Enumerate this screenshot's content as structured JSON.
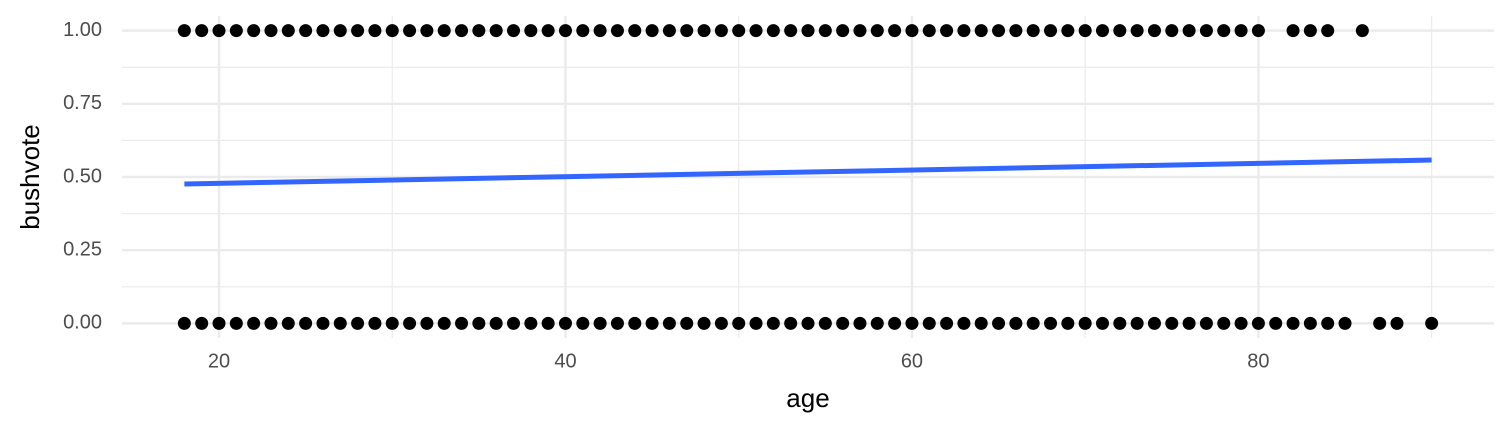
{
  "chart_data": {
    "type": "scatter",
    "x_label": "age",
    "y_label": "bushvote",
    "xlim": [
      14.4,
      93.6
    ],
    "ylim": [
      -0.05,
      1.05
    ],
    "xticks": [
      20,
      40,
      60,
      80
    ],
    "yticks": [
      {
        "value": 0,
        "label": "0.00"
      },
      0.25,
      {
        "value": 0.5,
        "label": "0.50"
      },
      0.75,
      {
        "value": 1,
        "label": "1.00"
      }
    ],
    "xminor_ticks": [
      30,
      50,
      70,
      90
    ],
    "yminor_ticks": [
      0.125,
      0.375,
      0.625,
      0.875
    ],
    "grid": true,
    "series": [
      {
        "type": "scatter",
        "color": "#000000",
        "x": [
          18,
          19,
          20,
          21,
          22,
          23,
          24,
          25,
          26,
          27,
          28,
          29,
          30,
          31,
          32,
          33,
          34,
          35,
          36,
          37,
          38,
          39,
          40,
          41,
          42,
          43,
          44,
          45,
          46,
          47,
          48,
          49,
          50,
          51,
          52,
          53,
          54,
          55,
          56,
          57,
          58,
          59,
          60,
          61,
          62,
          63,
          64,
          65,
          66,
          67,
          68,
          69,
          70,
          71,
          72,
          73,
          74,
          75,
          76,
          77,
          78,
          79,
          80,
          82,
          83,
          84,
          86
        ],
        "values": [
          1,
          1,
          1,
          1,
          1,
          1,
          1,
          1,
          1,
          1,
          1,
          1,
          1,
          1,
          1,
          1,
          1,
          1,
          1,
          1,
          1,
          1,
          1,
          1,
          1,
          1,
          1,
          1,
          1,
          1,
          1,
          1,
          1,
          1,
          1,
          1,
          1,
          1,
          1,
          1,
          1,
          1,
          1,
          1,
          1,
          1,
          1,
          1,
          1,
          1,
          1,
          1,
          1,
          1,
          1,
          1,
          1,
          1,
          1,
          1,
          1,
          1,
          1,
          1,
          1,
          1,
          1
        ]
      },
      {
        "type": "scatter",
        "color": "#000000",
        "x": [
          18,
          19,
          20,
          21,
          22,
          23,
          24,
          25,
          26,
          27,
          28,
          29,
          30,
          31,
          32,
          33,
          34,
          35,
          36,
          37,
          38,
          39,
          40,
          41,
          42,
          43,
          44,
          45,
          46,
          47,
          48,
          49,
          50,
          51,
          52,
          53,
          54,
          55,
          56,
          57,
          58,
          59,
          60,
          61,
          62,
          63,
          64,
          65,
          66,
          67,
          68,
          69,
          70,
          71,
          72,
          73,
          74,
          75,
          76,
          77,
          78,
          79,
          80,
          81,
          82,
          83,
          84,
          85,
          87,
          88,
          90
        ],
        "values": [
          0,
          0,
          0,
          0,
          0,
          0,
          0,
          0,
          0,
          0,
          0,
          0,
          0,
          0,
          0,
          0,
          0,
          0,
          0,
          0,
          0,
          0,
          0,
          0,
          0,
          0,
          0,
          0,
          0,
          0,
          0,
          0,
          0,
          0,
          0,
          0,
          0,
          0,
          0,
          0,
          0,
          0,
          0,
          0,
          0,
          0,
          0,
          0,
          0,
          0,
          0,
          0,
          0,
          0,
          0,
          0,
          0,
          0,
          0,
          0,
          0,
          0,
          0,
          0,
          0,
          0,
          0,
          0,
          0,
          0,
          0
        ]
      },
      {
        "type": "line",
        "color": "#3366ff",
        "x": [
          18,
          90
        ],
        "values": [
          0.476,
          0.558
        ]
      }
    ]
  }
}
